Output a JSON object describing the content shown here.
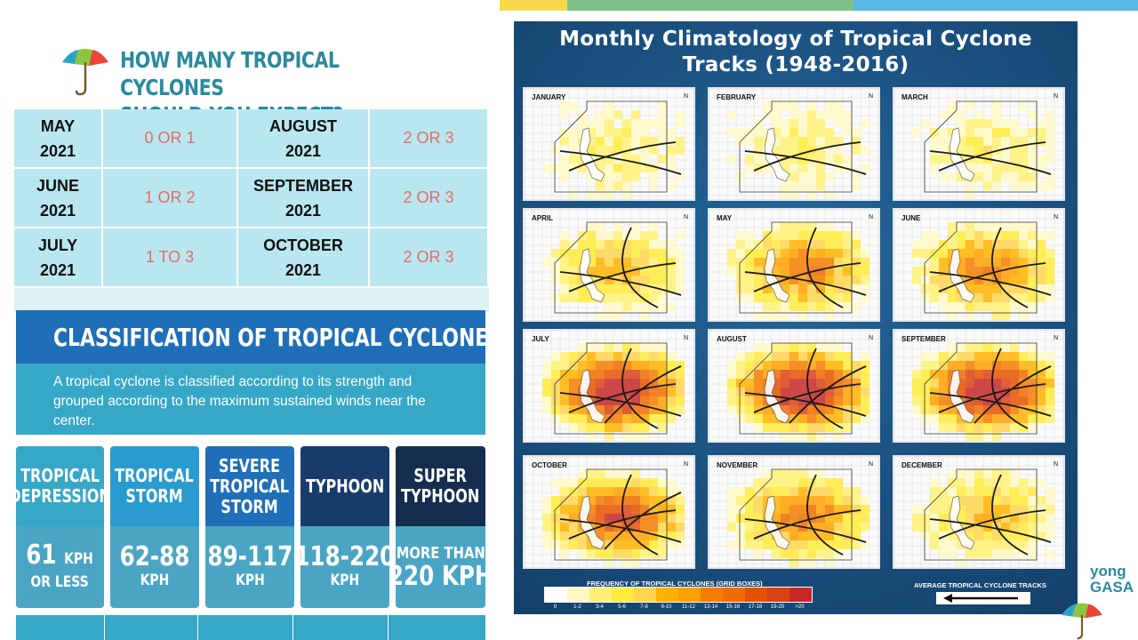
{
  "heading": {
    "line1": "HOW MANY TROPICAL CYCLONES",
    "line2": "SHOULD YOU EXPECT?"
  },
  "forecast": [
    {
      "month_a": "MAY",
      "year_a": "2021",
      "count_a": "0 OR 1",
      "month_b": "AUGUST",
      "year_b": "2021",
      "count_b": "2 OR 3"
    },
    {
      "month_a": "JUNE",
      "year_a": "2021",
      "count_a": "1 OR 2",
      "month_b": "SEPTEMBER",
      "year_b": "2021",
      "count_b": "2 OR 3"
    },
    {
      "month_a": "JULY",
      "year_a": "2021",
      "count_a": "1 TO 3",
      "month_b": "OCTOBER",
      "year_b": "2021",
      "count_b": "2 OR 3"
    }
  ],
  "classification": {
    "title": "CLASSIFICATION  OF TROPICAL CYCLONES",
    "description": "A tropical cyclone is classified according to its strength and grouped according to the maximum sustained winds near the center.",
    "categories": [
      {
        "name1": "TROPICAL",
        "name2": "DEPRESSION",
        "name3": "",
        "speed": "61",
        "unit": "KPH",
        "sub": "OR LESS",
        "color": "#36a7c6"
      },
      {
        "name1": "TROPICAL",
        "name2": "STORM",
        "name3": "",
        "speed": "62-88",
        "unit": "",
        "sub": "KPH",
        "color": "#2a9bd0"
      },
      {
        "name1": "SEVERE",
        "name2": "TROPICAL",
        "name3": "STORM",
        "speed": "89-117",
        "unit": "",
        "sub": "KPH",
        "color": "#1f6fb8"
      },
      {
        "name1": "TYPHOON",
        "name2": "",
        "name3": "",
        "speed": "118-220",
        "unit": "",
        "sub": "KPH",
        "color": "#173c6c"
      },
      {
        "name1": "SUPER",
        "name2": "TYPHOON",
        "name3": "",
        "speed": "MORE THAN",
        "unit": "",
        "sub": "220 KPH",
        "color": "#152e50"
      }
    ]
  },
  "climatology": {
    "title1": "Monthly Climatology of Tropical Cyclone",
    "title2": "Tracks (1948-2016)",
    "months": [
      "JANUARY",
      "FEBRUARY",
      "MARCH",
      "APRIL",
      "MAY",
      "JUNE",
      "JULY",
      "AUGUST",
      "SEPTEMBER",
      "OCTOBER",
      "NOVEMBER",
      "DECEMBER"
    ],
    "intensity": [
      1,
      1,
      1,
      2,
      3,
      3,
      5,
      5,
      5,
      4,
      3,
      2
    ],
    "north": "N",
    "legend_title": "FREQUENCY OF TROPICAL CYCLONES (GRID BOXES)",
    "legend_labels": [
      "0",
      "1-2",
      "3-4",
      "5-6",
      "7-8",
      "9-10",
      "11-12",
      "13-14",
      "15-16",
      "17-18",
      "19-20",
      ">20"
    ],
    "legend_colors": [
      "#ffffff",
      "#fff9c4",
      "#fff176",
      "#ffeb3b",
      "#ffd54f",
      "#ffb300",
      "#ffa000",
      "#f57c00",
      "#ef6c00",
      "#e65100",
      "#d84315",
      "#c62828"
    ],
    "avg_label": "AVERAGE TROPICAL CYCLONE TRACKS"
  },
  "brand": {
    "line1": "yong",
    "line2": "GASA"
  },
  "colors": {
    "strip1": "#f6d94a",
    "strip2": "#7fc08a",
    "strip3": "#5ab7e3",
    "heading": "#2a8a9e"
  }
}
